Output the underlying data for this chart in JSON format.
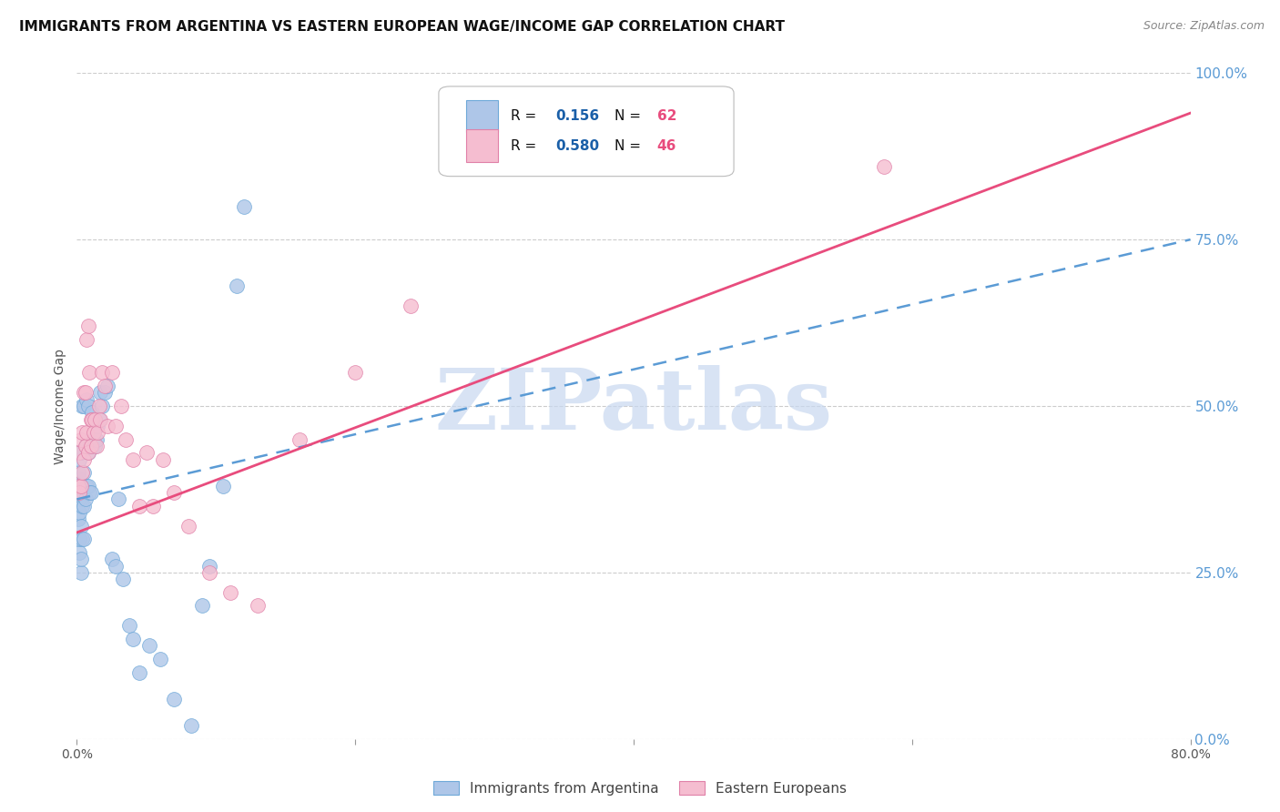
{
  "title": "IMMIGRANTS FROM ARGENTINA VS EASTERN EUROPEAN WAGE/INCOME GAP CORRELATION CHART",
  "source": "Source: ZipAtlas.com",
  "ylabel": "Wage/Income Gap",
  "xlim": [
    0.0,
    0.8
  ],
  "ylim": [
    0.0,
    1.0
  ],
  "xticks": [
    0.0,
    0.2,
    0.4,
    0.6,
    0.8
  ],
  "xticklabels": [
    "0.0%",
    "",
    "",
    "",
    "80.0%"
  ],
  "yticks_right": [
    0.0,
    0.25,
    0.5,
    0.75,
    1.0
  ],
  "yticklabels_right": [
    "0.0%",
    "25.0%",
    "50.0%",
    "75.0%",
    "100.0%"
  ],
  "series1_label": "Immigrants from Argentina",
  "series1_R": "0.156",
  "series1_N": "62",
  "series1_color": "#aec6e8",
  "series1_edge": "#6ea8d8",
  "series2_label": "Eastern Europeans",
  "series2_R": "0.580",
  "series2_N": "46",
  "series2_color": "#f5bdd0",
  "series2_edge": "#e080a8",
  "line1_color": "#5b9bd5",
  "line2_color": "#e84c7d",
  "watermark": "ZIPatlas",
  "watermark_color": "#c8d8f0",
  "background_color": "#ffffff",
  "title_fontsize": 11,
  "source_fontsize": 9,
  "legend_R_color": "#1a5fa8",
  "legend_N_color": "#e84c7d",
  "line1_x0": 0.0,
  "line1_y0": 0.36,
  "line1_x1": 0.8,
  "line1_y1": 0.75,
  "line2_x0": 0.0,
  "line2_y0": 0.31,
  "line2_x1": 0.8,
  "line2_y1": 0.94,
  "s1_x": [
    0.001,
    0.001,
    0.001,
    0.001,
    0.001,
    0.002,
    0.002,
    0.002,
    0.002,
    0.002,
    0.002,
    0.003,
    0.003,
    0.003,
    0.003,
    0.003,
    0.004,
    0.004,
    0.004,
    0.005,
    0.005,
    0.005,
    0.005,
    0.006,
    0.006,
    0.007,
    0.007,
    0.007,
    0.008,
    0.008,
    0.008,
    0.009,
    0.009,
    0.01,
    0.01,
    0.011,
    0.011,
    0.012,
    0.013,
    0.014,
    0.015,
    0.016,
    0.017,
    0.018,
    0.02,
    0.022,
    0.025,
    0.028,
    0.03,
    0.033,
    0.038,
    0.04,
    0.045,
    0.052,
    0.06,
    0.07,
    0.082,
    0.09,
    0.095,
    0.105,
    0.115,
    0.12
  ],
  "s1_y": [
    0.33,
    0.36,
    0.38,
    0.4,
    0.43,
    0.28,
    0.3,
    0.34,
    0.37,
    0.39,
    0.42,
    0.25,
    0.27,
    0.32,
    0.36,
    0.43,
    0.3,
    0.35,
    0.5,
    0.3,
    0.35,
    0.4,
    0.5,
    0.36,
    0.44,
    0.38,
    0.44,
    0.51,
    0.38,
    0.43,
    0.5,
    0.37,
    0.44,
    0.37,
    0.45,
    0.44,
    0.49,
    0.45,
    0.44,
    0.45,
    0.47,
    0.48,
    0.52,
    0.5,
    0.52,
    0.53,
    0.27,
    0.26,
    0.36,
    0.24,
    0.17,
    0.15,
    0.1,
    0.14,
    0.12,
    0.06,
    0.02,
    0.2,
    0.26,
    0.38,
    0.68,
    0.8
  ],
  "s2_x": [
    0.001,
    0.002,
    0.002,
    0.003,
    0.003,
    0.004,
    0.004,
    0.005,
    0.005,
    0.006,
    0.006,
    0.007,
    0.007,
    0.008,
    0.008,
    0.009,
    0.01,
    0.01,
    0.011,
    0.012,
    0.013,
    0.014,
    0.015,
    0.016,
    0.017,
    0.018,
    0.02,
    0.022,
    0.025,
    0.028,
    0.032,
    0.035,
    0.04,
    0.045,
    0.05,
    0.055,
    0.062,
    0.07,
    0.08,
    0.095,
    0.11,
    0.13,
    0.16,
    0.2,
    0.24,
    0.58
  ],
  "s2_y": [
    0.38,
    0.37,
    0.43,
    0.38,
    0.45,
    0.4,
    0.46,
    0.42,
    0.52,
    0.44,
    0.52,
    0.46,
    0.6,
    0.43,
    0.62,
    0.55,
    0.44,
    0.48,
    0.48,
    0.46,
    0.48,
    0.44,
    0.46,
    0.5,
    0.48,
    0.55,
    0.53,
    0.47,
    0.55,
    0.47,
    0.5,
    0.45,
    0.42,
    0.35,
    0.43,
    0.35,
    0.42,
    0.37,
    0.32,
    0.25,
    0.22,
    0.2,
    0.45,
    0.55,
    0.65,
    0.86
  ]
}
